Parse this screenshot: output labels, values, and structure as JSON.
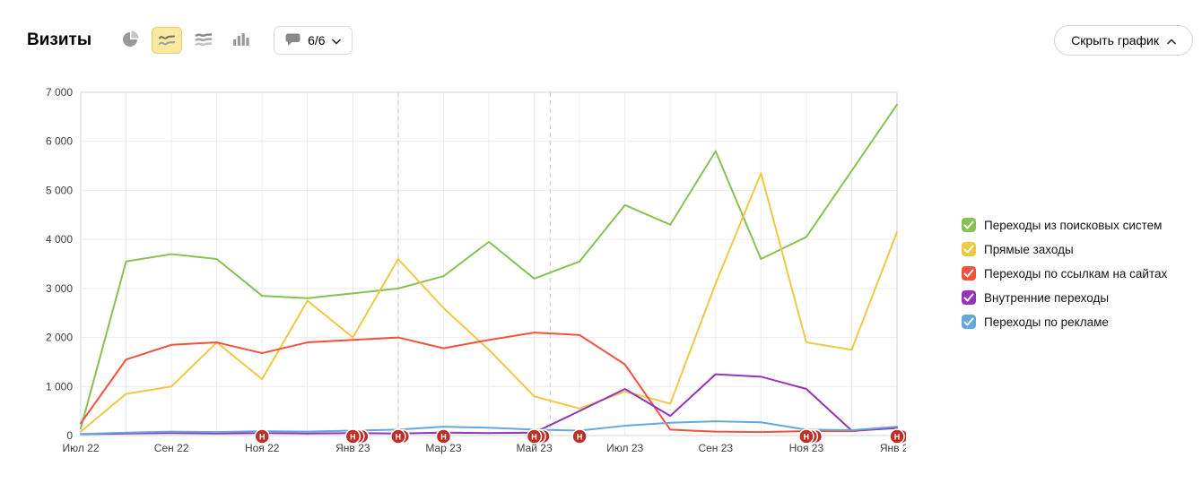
{
  "header": {
    "title": "Визиты",
    "annotations_count": "6/6",
    "hide_chart_label": "Скрыть график",
    "chart_type_icons": [
      "pie-chart",
      "line-chart",
      "stacked-area",
      "bar-chart"
    ],
    "selected_chart_type": "line-chart"
  },
  "colors": {
    "green": "#89c053",
    "yellow": "#f0c843",
    "red": "#f4503a",
    "purple": "#9334b9",
    "blue": "#63a8dc",
    "marker_red": "#bf2e24",
    "selected_icon_bg": "#fbe9a0",
    "grid": "#ececec",
    "axis_text": "#3d3d3d"
  },
  "chart_data": {
    "type": "line",
    "title": "Визиты",
    "xlabel": "",
    "ylabel": "",
    "grid": true,
    "legend_position": "right",
    "ylim": [
      0,
      7000
    ],
    "y_tick_labels": [
      "0",
      "1 000",
      "2 000",
      "3 000",
      "4 000",
      "5 000",
      "6 000",
      "7 000"
    ],
    "categories": [
      "Июл 22",
      "Авг 22",
      "Сен 22",
      "Окт 22",
      "Ноя 22",
      "Дек 22",
      "Янв 23",
      "Фев 23",
      "Мар 23",
      "Апр 23",
      "Май 23",
      "Июн 23",
      "Июл 23",
      "Авг 23",
      "Сен 23",
      "Окт 23",
      "Ноя 23",
      "Дек 23",
      "Янв 24"
    ],
    "x_tick_labels": [
      "Июл 22",
      "Сен 22",
      "Ноя 22",
      "Янв 23",
      "Мар 23",
      "Май 23",
      "Июл 23",
      "Сен 23",
      "Ноя 23",
      "Янв 24"
    ],
    "series": [
      {
        "name": "Переходы из поисковых систем",
        "color": "#89c053",
        "values": [
          150,
          3550,
          3700,
          3600,
          2850,
          2800,
          2900,
          3000,
          3250,
          3950,
          3200,
          3550,
          4700,
          4300,
          5800,
          3600,
          4050,
          5400,
          6750
        ]
      },
      {
        "name": "Прямые заходы",
        "color": "#f0c843",
        "values": [
          80,
          850,
          1000,
          1900,
          1150,
          2750,
          2000,
          3600,
          2600,
          1750,
          800,
          550,
          900,
          650,
          3100,
          5350,
          1900,
          1750,
          4150
        ]
      },
      {
        "name": "Переходы по ссылкам на сайтах",
        "color": "#f4503a",
        "values": [
          250,
          1550,
          1850,
          1900,
          1680,
          1900,
          1950,
          2000,
          1780,
          1950,
          2100,
          2050,
          1450,
          120,
          80,
          70,
          90,
          90,
          160
        ]
      },
      {
        "name": "Внутренние переходы",
        "color": "#9334b9",
        "values": [
          30,
          40,
          50,
          40,
          50,
          40,
          50,
          40,
          60,
          50,
          60,
          500,
          950,
          400,
          1250,
          1200,
          950,
          100,
          150
        ]
      },
      {
        "name": "Переходы по рекламе",
        "color": "#63a8dc",
        "values": [
          30,
          60,
          80,
          70,
          90,
          80,
          100,
          120,
          180,
          160,
          120,
          100,
          200,
          260,
          290,
          270,
          120,
          110,
          180
        ]
      }
    ],
    "annotation_markers": [
      {
        "month_index": 4,
        "label": "Н",
        "stack": 1
      },
      {
        "month_index": 6,
        "label": "Н",
        "stack": 3
      },
      {
        "month_index": 7,
        "label": "Н",
        "stack": 2
      },
      {
        "month_index": 8,
        "label": "Н",
        "stack": 1
      },
      {
        "month_index": 10,
        "label": "Н",
        "stack": 3
      },
      {
        "month_index": 11,
        "label": "Н",
        "stack": 1
      },
      {
        "month_index": 16,
        "label": "Н",
        "stack": 3
      },
      {
        "month_index": 18,
        "label": "Н",
        "stack": 3
      }
    ],
    "dashed_vlines_month_index": [
      7,
      10.35
    ]
  }
}
